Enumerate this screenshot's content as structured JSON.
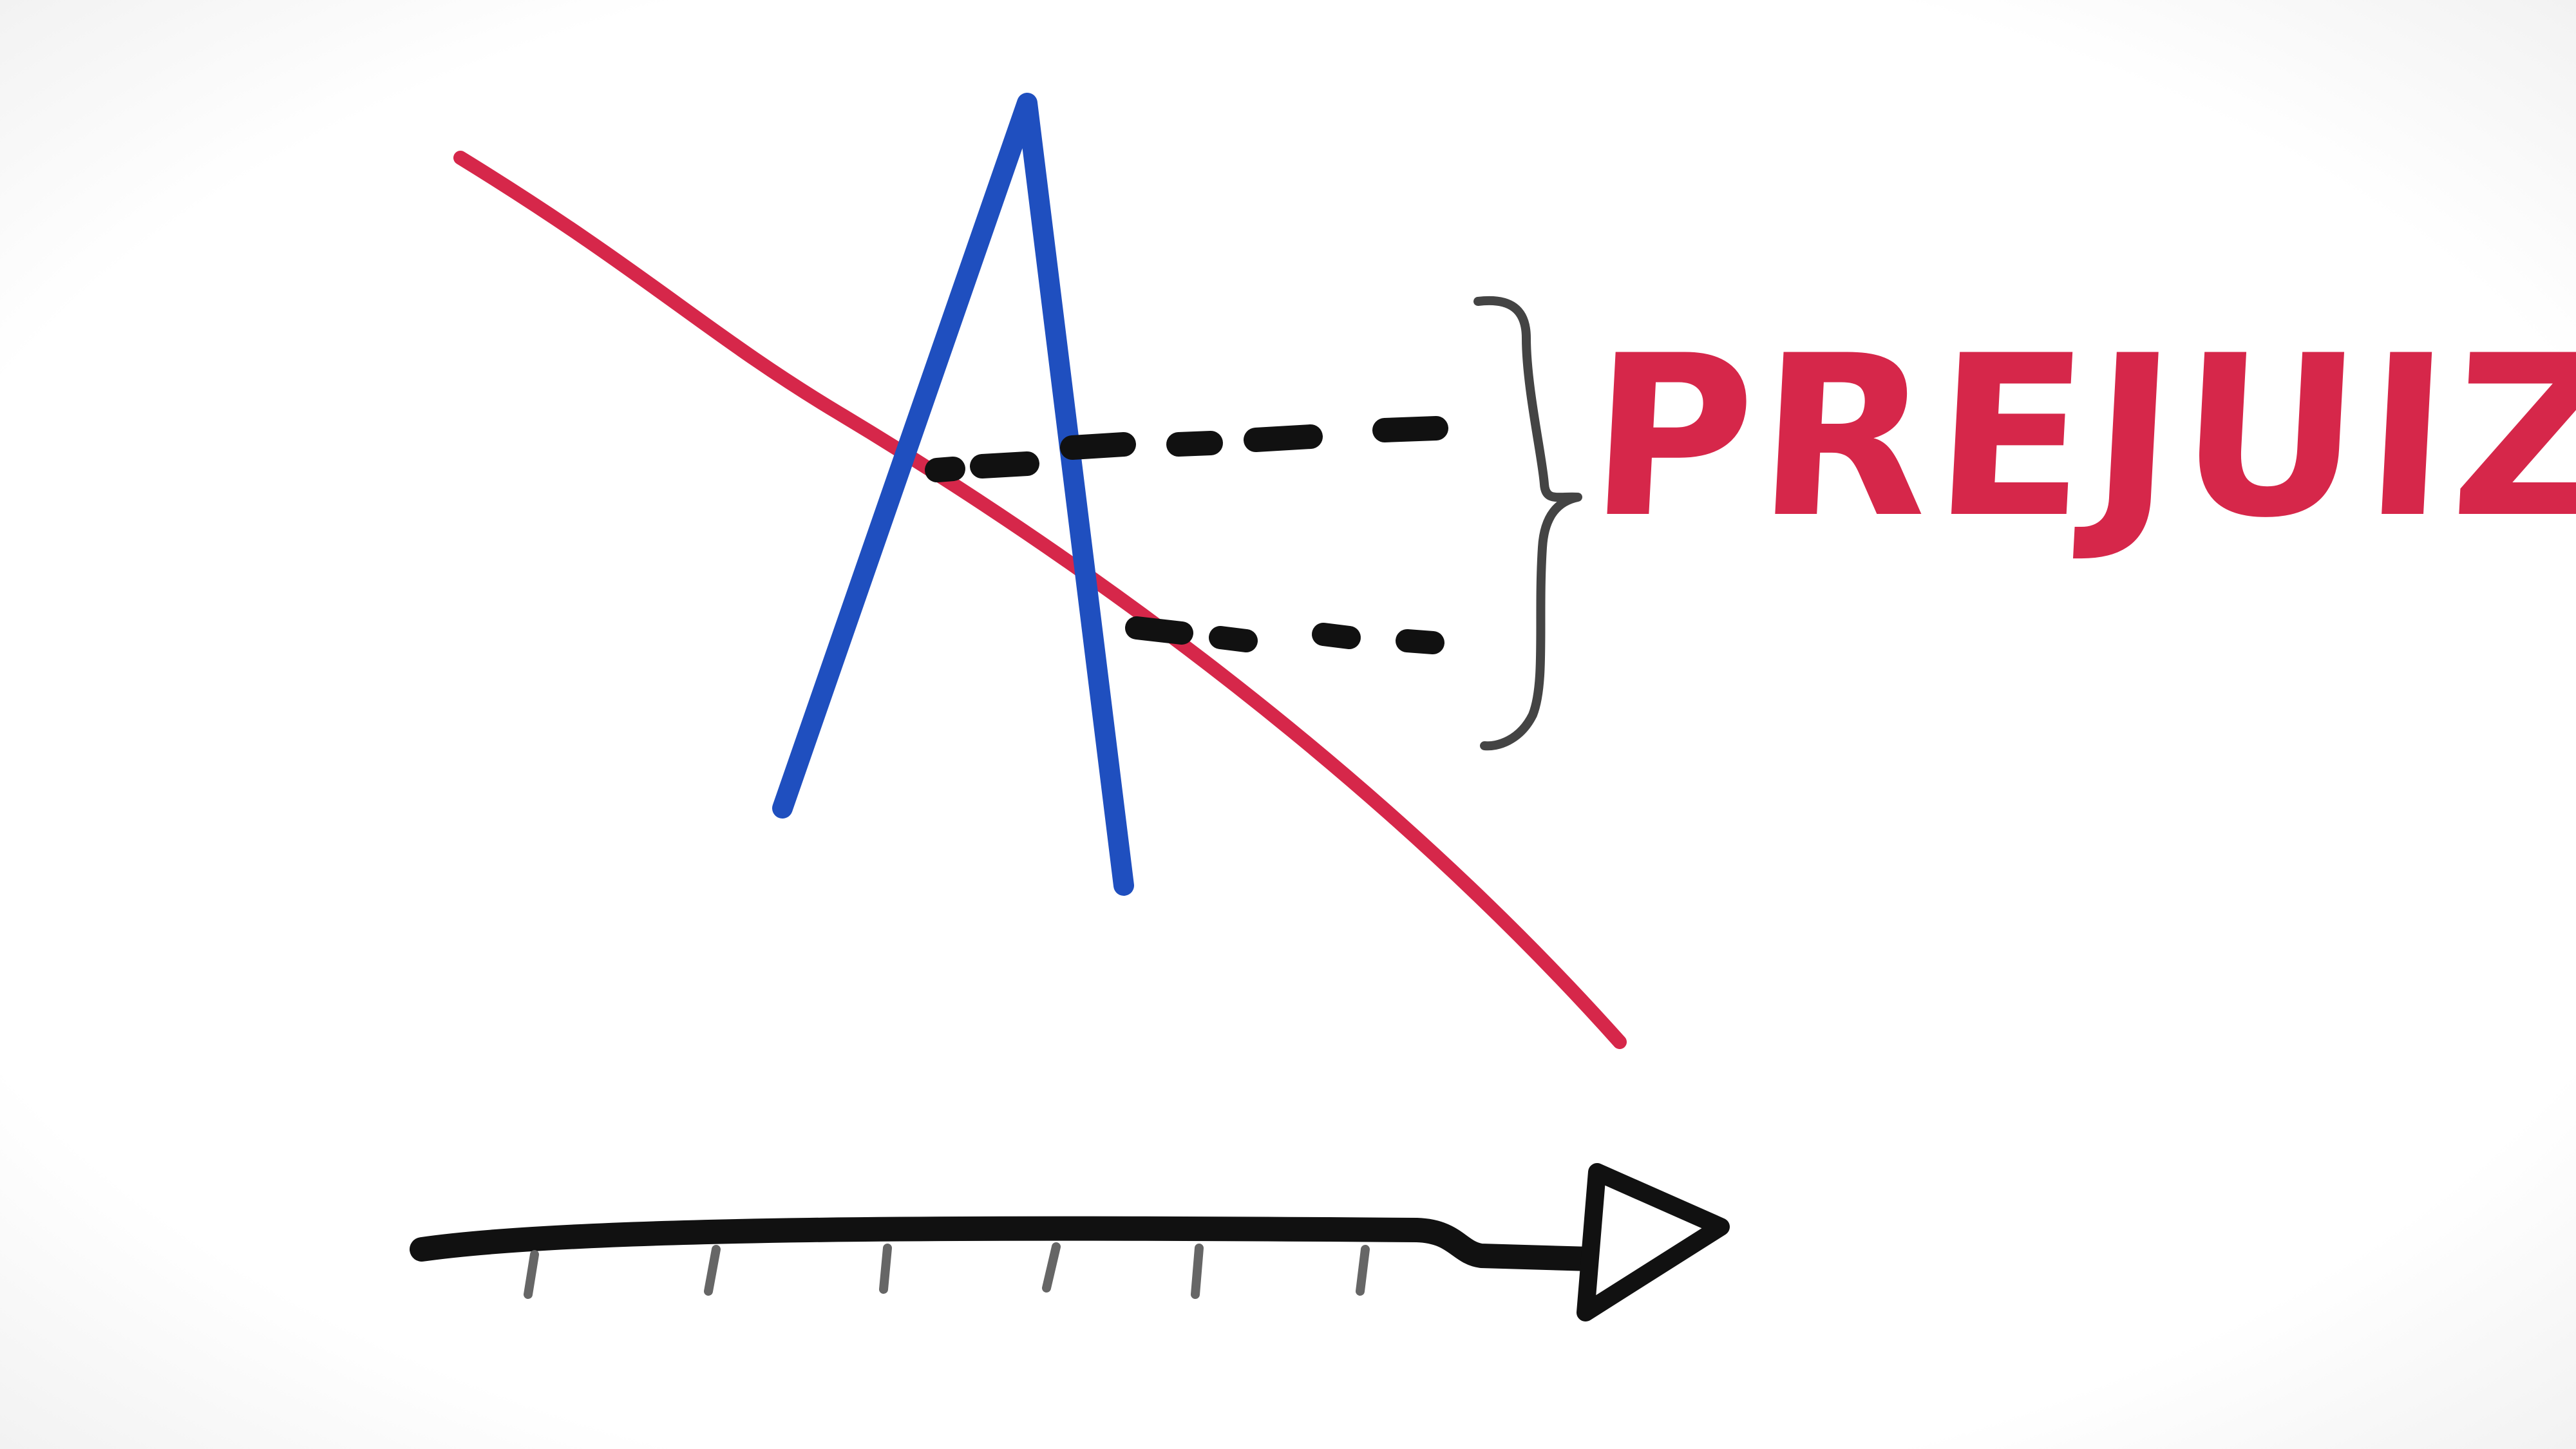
{
  "diagram": {
    "label": "PREJUIZO",
    "colors": {
      "label": "#d6274a",
      "descending_line": "#d6274a",
      "peak_line": "#1f4fbf",
      "dashes": "#111111",
      "brace": "#444444",
      "time_axis": "#111111",
      "ticks": "#666666"
    },
    "icons": {
      "brace": "right-curly-brace",
      "axis_head": "hollow-triangle-arrowhead"
    },
    "time_axis_tick_count": 6
  }
}
